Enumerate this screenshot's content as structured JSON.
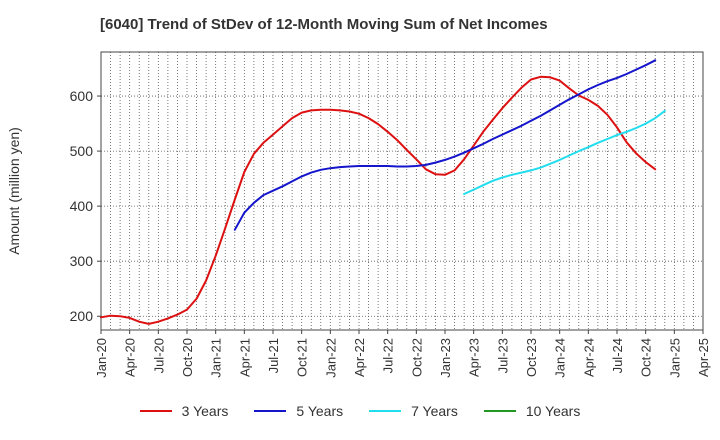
{
  "title": "[6040]  Trend of StDev of 12-Month Moving Sum of Net Incomes",
  "chart_data": {
    "type": "line",
    "title": "[6040]  Trend of StDev of 12-Month Moving Sum of Net Incomes",
    "ylabel": "Amount (million yen)",
    "xlabel": "",
    "ylim": [
      175,
      680
    ],
    "yticks": [
      200,
      300,
      400,
      500,
      600
    ],
    "xlim": [
      "2020-01",
      "2025-04"
    ],
    "xticks": [
      "Jan-20",
      "Apr-20",
      "Jul-20",
      "Oct-20",
      "Jan-21",
      "Apr-21",
      "Jul-21",
      "Oct-21",
      "Jan-22",
      "Apr-22",
      "Jul-22",
      "Oct-22",
      "Jan-23",
      "Apr-23",
      "Jul-23",
      "Oct-23",
      "Jan-24",
      "Apr-24",
      "Jul-24",
      "Oct-24",
      "Jan-25",
      "Apr-25"
    ],
    "grid": true,
    "legend_position": "bottom",
    "series": [
      {
        "name": "3 Years",
        "color": "#dd1111",
        "start": "2020-01",
        "values": [
          198,
          201,
          200,
          197,
          190,
          186,
          190,
          196,
          203,
          212,
          232,
          265,
          310,
          360,
          412,
          462,
          495,
          515,
          530,
          545,
          560,
          570,
          574,
          575,
          575,
          574,
          572,
          568,
          560,
          549,
          535,
          520,
          502,
          485,
          467,
          458,
          457,
          465,
          485,
          510,
          535,
          557,
          578,
          597,
          615,
          630,
          635,
          634,
          628,
          614,
          601,
          593,
          582,
          566,
          543,
          516,
          496,
          480,
          467
        ]
      },
      {
        "name": "5 Years",
        "color": "#1515cc",
        "start": "2021-03",
        "values": [
          357,
          388,
          406,
          420,
          428,
          436,
          445,
          454,
          461,
          466,
          469,
          471,
          472,
          473,
          473,
          473,
          473,
          472,
          472,
          473,
          475,
          479,
          484,
          490,
          497,
          505,
          513,
          522,
          530,
          538,
          546,
          555,
          564,
          574,
          584,
          594,
          603,
          612,
          620,
          627,
          633,
          640,
          648,
          656,
          665
        ]
      },
      {
        "name": "7 Years",
        "color": "#22ddee",
        "start": "2023-03",
        "values": [
          422,
          430,
          438,
          446,
          452,
          457,
          461,
          465,
          470,
          477,
          484,
          492,
          500,
          507,
          515,
          522,
          529,
          535,
          542,
          550,
          560,
          573
        ]
      },
      {
        "name": "10 Years",
        "color": "#229922",
        "start": "2025-01",
        "values": []
      }
    ]
  }
}
